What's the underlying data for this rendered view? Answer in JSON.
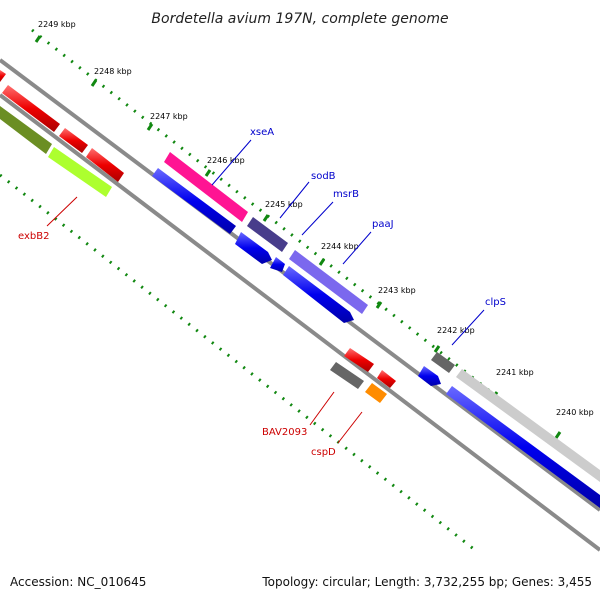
{
  "title": "Bordetella avium 197N, complete genome",
  "footer": {
    "accession": "Accession: NC_010645",
    "stats": "Topology: circular; Length: 3,732,255 bp; Genes: 3,455"
  },
  "ticks": [
    "2249 kbp",
    "2248 kbp",
    "2247 kbp",
    "2246 kbp",
    "2245 kbp",
    "2244 kbp",
    "2243 kbp",
    "2242 kbp",
    "2241 kbp",
    "2240 kbp"
  ],
  "gene_labels": {
    "xseA": "xseA",
    "sodB": "sodB",
    "msrB": "msrB",
    "paaJ": "paaJ",
    "clpS": "clpS",
    "exbB2": "exbB2",
    "BAV2093": "BAV2093",
    "cspD": "cspD"
  },
  "colors": {
    "forward_cds": "#0000ee",
    "reverse_cds": "#ee0000",
    "pink_feature": "#ff1493",
    "dark_purple_feature": "#483d8b",
    "light_purple_feature": "#7b68ee",
    "gray_feature": "#666666",
    "light_gray_feature": "#cccccc",
    "olive_feature": "#6b8e23",
    "lime_feature": "#adff2f",
    "orange_feature": "#ff8c00",
    "tick_color": "#118811",
    "backbone": "#888888"
  }
}
